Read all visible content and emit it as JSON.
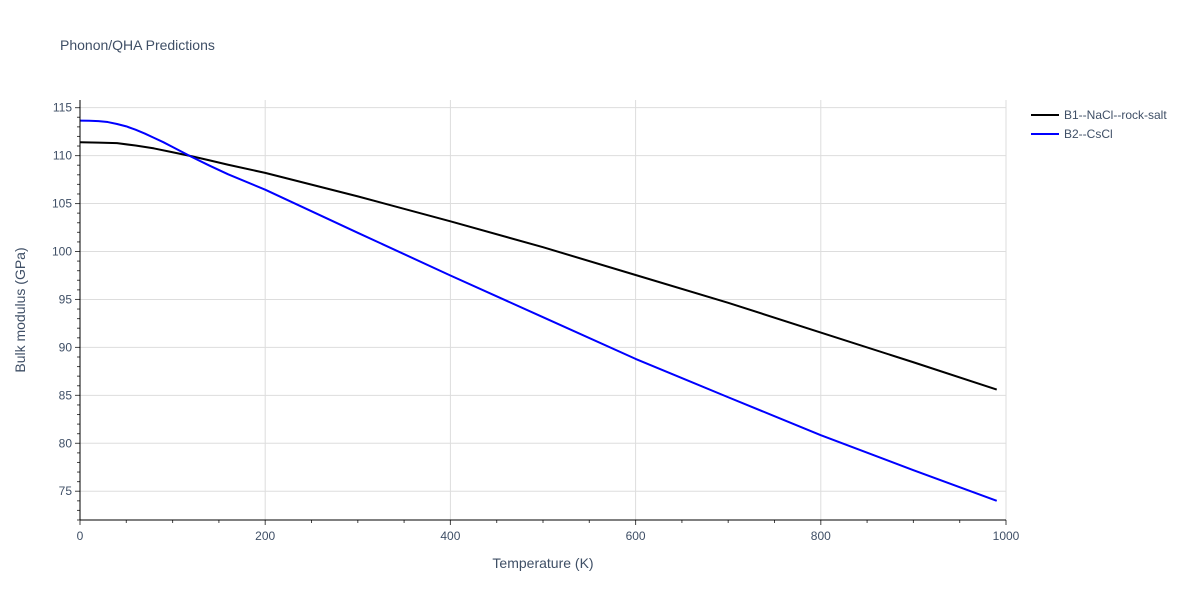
{
  "chart_data": {
    "type": "line",
    "title": "Phonon/QHA Predictions",
    "xlabel": "Temperature (K)",
    "ylabel": "Bulk modulus (GPa)",
    "xlim": [
      0,
      1000
    ],
    "ylim": [
      72,
      115.8
    ],
    "xticks": [
      0,
      200,
      400,
      600,
      800,
      1000
    ],
    "yticks": [
      75,
      80,
      85,
      90,
      95,
      100,
      105,
      110,
      115
    ],
    "grid": true,
    "legend_position": "top-right",
    "series": [
      {
        "name": "B1--NaCl--rock-salt",
        "color": "#000000",
        "x": [
          0,
          20,
          40,
          60,
          80,
          100,
          120,
          140,
          160,
          200,
          300,
          400,
          500,
          600,
          700,
          800,
          900,
          990
        ],
        "y": [
          111.4,
          111.35,
          111.3,
          111.05,
          110.75,
          110.35,
          109.95,
          109.5,
          109.05,
          108.2,
          105.75,
          103.15,
          100.45,
          97.55,
          94.65,
          91.55,
          88.45,
          85.6
        ]
      },
      {
        "name": "B2--CsCl",
        "color": "#0000ff",
        "x": [
          0,
          10,
          20,
          30,
          40,
          50,
          60,
          70,
          80,
          90,
          100,
          120,
          140,
          160,
          200,
          300,
          400,
          500,
          600,
          700,
          800,
          900,
          990
        ],
        "y": [
          113.65,
          113.63,
          113.6,
          113.5,
          113.3,
          113.05,
          112.7,
          112.3,
          111.85,
          111.4,
          110.9,
          109.9,
          108.95,
          108.05,
          106.45,
          101.95,
          97.5,
          93.15,
          88.8,
          84.8,
          80.85,
          77.2,
          74.0
        ]
      }
    ]
  }
}
